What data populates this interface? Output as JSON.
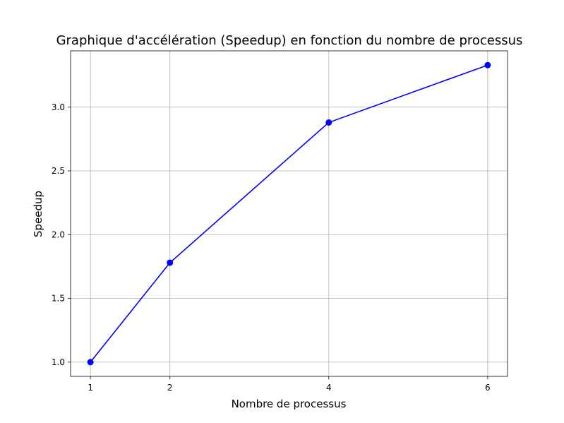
{
  "chart_data": {
    "type": "line",
    "title": "Graphique d'accélération (Speedup) en fonction du nombre de processus",
    "xlabel": "Nombre de processus",
    "ylabel": "Speedup",
    "x": [
      1,
      2,
      4,
      6
    ],
    "series": [
      {
        "values": [
          1.0,
          1.78,
          2.88,
          3.33
        ],
        "color": "#0000ff",
        "marker": "circle"
      }
    ],
    "xticks": [
      "1",
      "2",
      "4",
      "6"
    ],
    "yticks": [
      "1.0",
      "1.5",
      "2.0",
      "2.5",
      "3.0"
    ],
    "xlim": [
      0.75,
      6.25
    ],
    "ylim": [
      0.888,
      3.442
    ],
    "grid": true
  }
}
